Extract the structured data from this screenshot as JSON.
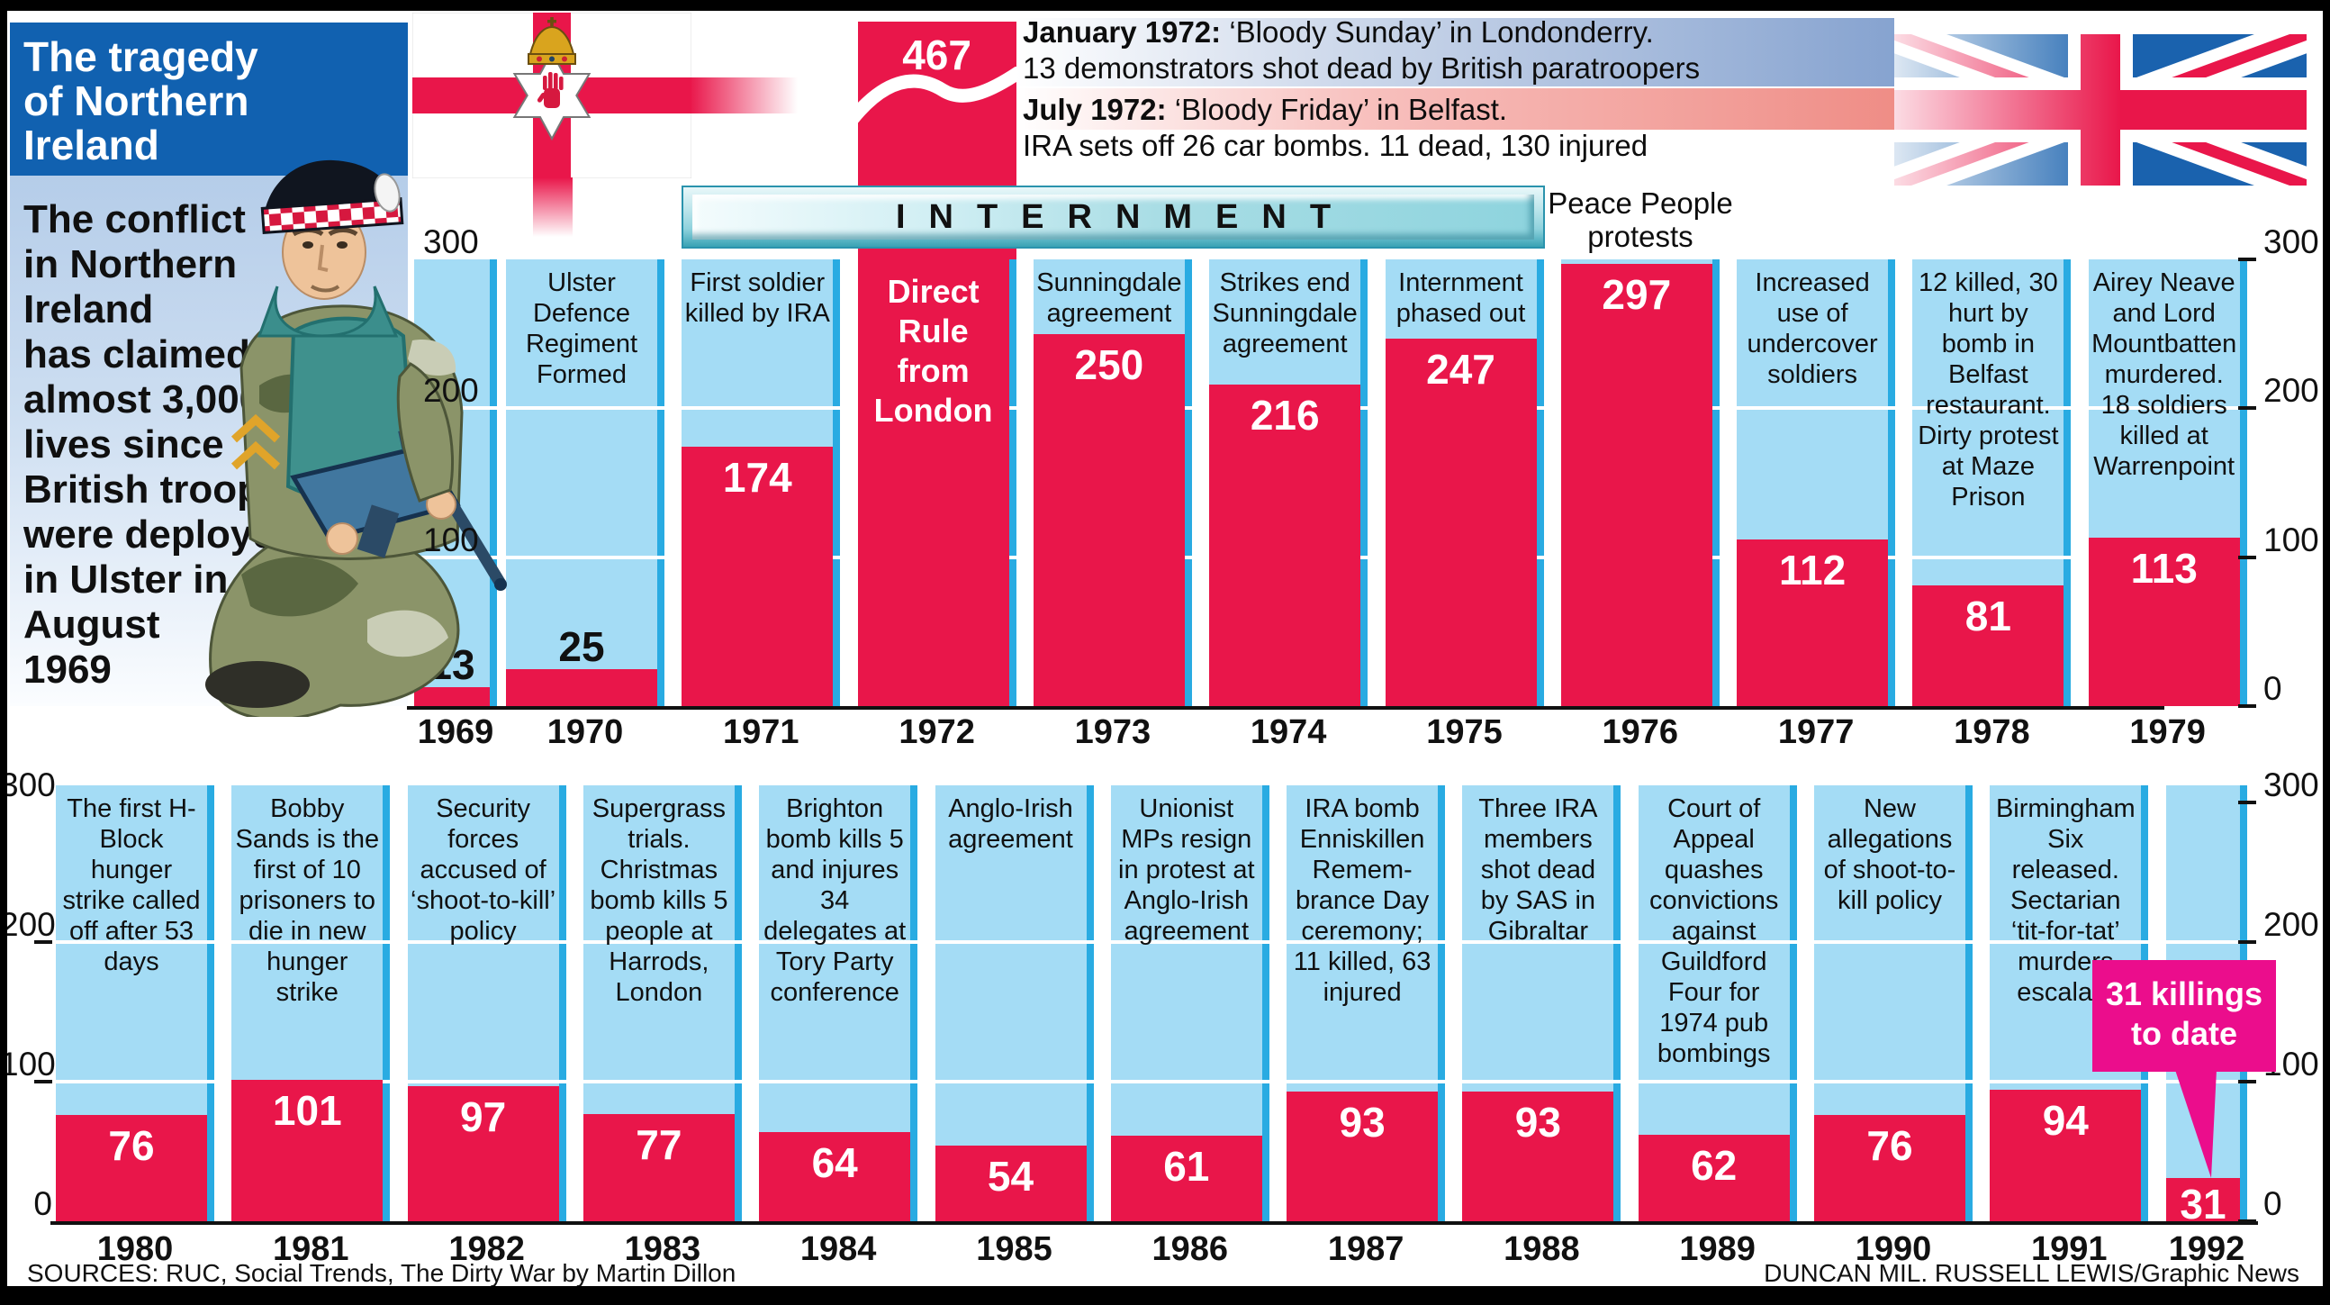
{
  "title": "The tragedy\nof Northern\nIreland",
  "intro": "The conflict\nin Northern\nIreland\nhas claimed\nalmost 3,000\nlives since\nBritish troops\nwere deployed\nin Ulster in\nAugust\n1969",
  "events_1972": [
    {
      "date": "January 1972:",
      "headline": "‘Bloody Sunday’ in Londonderry.",
      "detail": "13 demonstrators shot dead by British paratroopers"
    },
    {
      "date": "July 1972:",
      "headline": "‘Bloody Friday’ in Belfast.",
      "detail": "IRA sets off 26 car bombs. 11 dead, 130 injured"
    }
  ],
  "internment_label": "INTERNMENT",
  "peace_people_label": "Peace People\nprotests",
  "callout": {
    "text": "31 killings\nto date"
  },
  "sources": "SOURCES: RUC, Social Trends, The Dirty War by Martin Dillon",
  "credit": "DUNCAN MIL. RUSSELL LEWIS/Graphic News",
  "icons": {
    "ulster_flag": "ulster-banner-flag",
    "union_jack": "union-jack-flag",
    "soldier": "british-soldier-illustration",
    "break_wave": "bar-scale-break-wave"
  },
  "colors": {
    "bar_red": "#e9164a",
    "column_blue": "#a4dcf5",
    "stripe_blue": "#29abe2",
    "title_blue": "#1161b0",
    "callout_magenta": "#eb0d8c",
    "banner_teal": "#8ed4de"
  },
  "chart_data": {
    "type": "bar",
    "ylabel": "",
    "ylim": [
      0,
      300
    ],
    "yticks": [
      300,
      200,
      100,
      0
    ],
    "gridlines": [
      200,
      100
    ],
    "legend": "none",
    "truncated_bar": {
      "year": 1972,
      "value": 467
    },
    "rows": [
      {
        "years": [
          "1969",
          "1970",
          "1971",
          "1972",
          "1973",
          "1974",
          "1975",
          "1976",
          "1977",
          "1978",
          "1979"
        ],
        "values": [
          13,
          25,
          174,
          467,
          250,
          216,
          247,
          297,
          112,
          81,
          113
        ],
        "annotations": [
          "",
          "Ulster Defence Regiment Formed",
          "First soldier killed by IRA",
          "Direct\nRule\nfrom\nLondon",
          "Sunningdale agreement",
          "Strikes end Sunningdale agreement",
          "Internment phased out",
          "",
          "Increased use of undercover soldiers",
          "12 killed, 30 hurt by bomb in Belfast restaurant. Dirty protest at Maze Prison",
          "Airey Neave and Lord Mountbatten murdered. 18 soldiers killed at Warrenpoint"
        ]
      },
      {
        "years": [
          "1980",
          "1981",
          "1982",
          "1983",
          "1984",
          "1985",
          "1986",
          "1987",
          "1988",
          "1989",
          "1990",
          "1991",
          "1992"
        ],
        "values": [
          76,
          101,
          97,
          77,
          64,
          54,
          61,
          93,
          93,
          62,
          76,
          94,
          31
        ],
        "annotations": [
          "The first H-Block hunger strike called off after 53 days",
          "Bobby Sands is the first of 10 prisoners to die in new hunger strike",
          "Security forces accused of ‘shoot-to-kill’ policy",
          "Supergrass trials. Christmas bomb kills 5 people at Harrods, London",
          "Brighton bomb kills 5 and injures 34 delegates at Tory Party conference",
          "Anglo-Irish agreement",
          "Unionist MPs resign in protest at Anglo-Irish agreement",
          "IRA bomb Enniskillen Remem­brance Day ceremony; 11 killed, 63 injured",
          "Three IRA members shot dead by SAS in Gibraltar",
          "Court of Appeal quashes convictions against Guildford Four for 1974 pub bombings",
          "New allegations of shoot-to-kill policy",
          "Birmingham Six released. Sectarian ‘tit-for-tat’ murders escalate",
          ""
        ]
      }
    ]
  }
}
